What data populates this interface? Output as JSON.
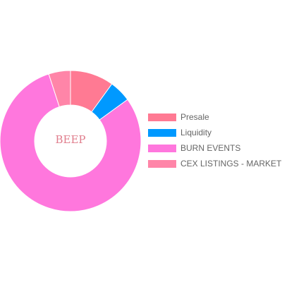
{
  "chart_data": {
    "type": "pie",
    "donut": true,
    "center_text": "BEEP",
    "center_text_color": "#e07d8c",
    "categories": [
      "Presale",
      "Liquidity",
      "BURN EVENTS",
      "CEX LISTINGS - MARKET"
    ],
    "values": [
      10,
      5,
      80,
      5
    ],
    "colors": [
      "#ff7a93",
      "#0099ff",
      "#ff77dd",
      "#ff85a8"
    ],
    "legend_position": "right"
  }
}
